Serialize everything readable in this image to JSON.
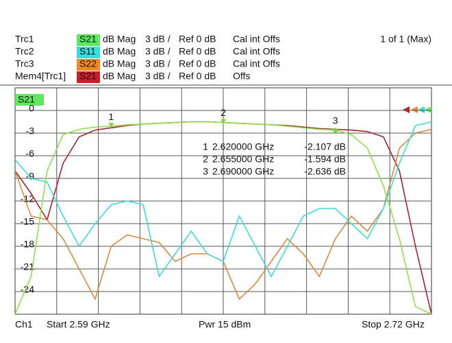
{
  "status": "1 of 1 (Max)",
  "footer": {
    "channel": "Ch1",
    "start": "Start 2.59 GHz",
    "power": "Pwr 15 dBm",
    "stop": "Stop 2.72 GHz"
  },
  "chart_data": {
    "type": "line",
    "active_trace": "S21",
    "x": [
      2.59,
      2.595,
      2.6,
      2.605,
      2.61,
      2.615,
      2.62,
      2.625,
      2.63,
      2.635,
      2.64,
      2.645,
      2.65,
      2.655,
      2.66,
      2.665,
      2.67,
      2.675,
      2.68,
      2.685,
      2.69,
      2.695,
      2.7,
      2.705,
      2.71,
      2.715,
      2.72
    ],
    "xlim": [
      2.59,
      2.72
    ],
    "ylim": [
      -27,
      3
    ],
    "yticks": [
      0,
      -3,
      -6,
      -9,
      -12,
      -15,
      -18,
      -21,
      -24
    ],
    "grid": true,
    "series": [
      {
        "name": "Trc1",
        "param": "S21",
        "format": "dB Mag",
        "scale": "3 dB /",
        "ref": "Ref 0 dB",
        "cal": "Cal int Offs",
        "color": "#8ee04a",
        "tag_color": "#5ee85e",
        "values": [
          -27,
          -22,
          -8,
          -3.2,
          -2.5,
          -2.2,
          -2.1,
          -1.9,
          -1.8,
          -1.7,
          -1.6,
          -1.5,
          -1.5,
          -1.6,
          -1.7,
          -1.8,
          -1.9,
          -2.1,
          -2.3,
          -2.5,
          -2.6,
          -3.2,
          -5,
          -10,
          -17,
          -26,
          -27
        ]
      },
      {
        "name": "Trc2",
        "param": "S11",
        "format": "dB Mag",
        "scale": "3 dB /",
        "ref": "Ref 0 dB",
        "cal": "Cal int Offs",
        "color": "#3cdada",
        "tag_color": "#33e0e0",
        "values": [
          -6.5,
          -9,
          -9.5,
          -14,
          -18,
          -15,
          -12.5,
          -12,
          -12.5,
          -22,
          -19,
          -16,
          -19,
          -20,
          -14,
          -18,
          -22,
          -18,
          -14,
          -13,
          -13,
          -15,
          -17,
          -13,
          -7,
          -2,
          -1.5
        ]
      },
      {
        "name": "Trc3",
        "param": "S22",
        "format": "dB Mag",
        "scale": "3 dB /",
        "ref": "Ref 0 dB",
        "cal": "Cal int Offs",
        "color": "#d98a3c",
        "tag_color": "#f08a20",
        "values": [
          -8,
          -14,
          -14.5,
          -17,
          -21,
          -25,
          -18,
          -16.5,
          -17,
          -17.5,
          -20,
          -19,
          -19,
          -20,
          -25,
          -23,
          -20,
          -17,
          -19,
          -22,
          -17,
          -14,
          -16,
          -13,
          -5,
          -3,
          -2.5
        ]
      },
      {
        "name": "Mem4[Trc1]",
        "param": "S21",
        "format": "dB Mag",
        "scale": "3 dB /",
        "ref": "Ref 0 dB",
        "cal": "Offs",
        "color": "#a8202c",
        "tag_color": "#c8202a",
        "values": [
          -8,
          -11,
          -14.5,
          -7,
          -3.5,
          -2.6,
          -2.3,
          -2.0,
          -1.8,
          -1.7,
          -1.6,
          -1.5,
          -1.5,
          -1.6,
          -1.7,
          -1.8,
          -1.9,
          -2.0,
          -2.2,
          -2.4,
          -2.5,
          -2.6,
          -2.8,
          -3.5,
          -8,
          -18,
          -27
        ]
      }
    ],
    "markers": [
      {
        "label": "1",
        "x": 2.62,
        "x_label": "2.620000 GHz",
        "value": -2.107,
        "value_label": "-2.107 dB"
      },
      {
        "label": "2",
        "x": 2.655,
        "x_label": "2.655000 GHz",
        "value": -1.594,
        "value_label": "-1.594 dB"
      },
      {
        "label": "3",
        "x": 2.69,
        "x_label": "2.690000 GHz",
        "value": -2.636,
        "value_label": "-2.636 dB"
      }
    ]
  }
}
